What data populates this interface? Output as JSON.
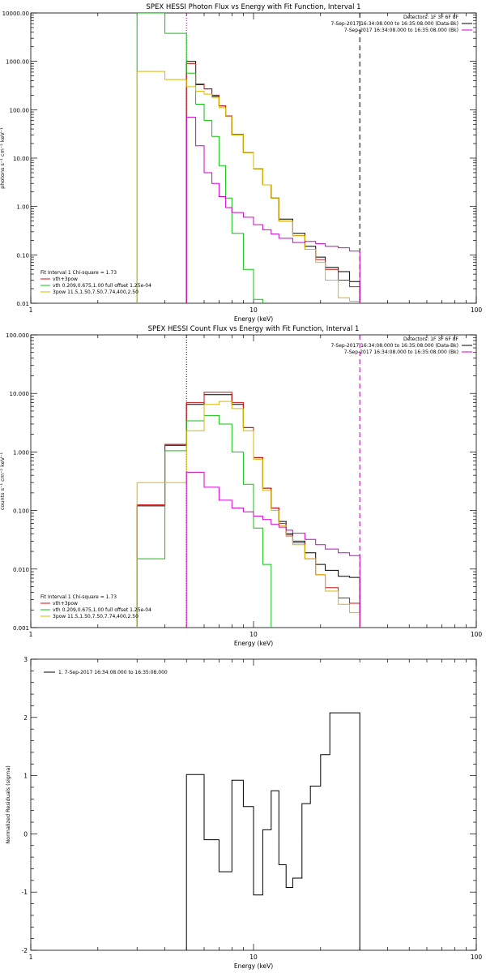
{
  "chart_data": [
    {
      "type": "line",
      "title": "SPEX HESSI Photon Flux vs Energy with Fit Function, Interval 1",
      "xlabel": "Energy (keV)",
      "ylabel": "photons s⁻¹ cm⁻² keV⁻¹",
      "xscale": "log",
      "yscale": "log",
      "xlim": [
        1,
        100
      ],
      "ylim": [
        0.01,
        10000
      ],
      "xticks": [
        "1",
        "10",
        "100"
      ],
      "yticks": [
        "0.01",
        "0.10",
        "1.00",
        "10.00",
        "100.00",
        "1000.00",
        "10000.00"
      ],
      "vlines": [
        {
          "x": 5.0,
          "style": "dotted",
          "color": "#b000b0"
        },
        {
          "x": 30.0,
          "style": "dashed",
          "color": "#000000"
        }
      ],
      "legend_right": [
        {
          "text": "Detectors: 1F 3F 6F 8F",
          "color": ""
        },
        {
          "text": "7-Sep-2017 16:34:08.000 to 16:35:08.000 (Data-Bk)",
          "color": "#000000"
        },
        {
          "text": "7-Sep-2017 16:34:08.000 to 16:35:08.000 (Bk)",
          "color": "#d000d0"
        }
      ],
      "legend_left": [
        {
          "text": "Fit Interval 1   Chi-square = 1.73",
          "color": ""
        },
        {
          "text": "vth+3pow",
          "color": "#d01010"
        },
        {
          "text": "vth 0.209,0.675,1.00  full offset 1.25e-04",
          "color": "#10c010"
        },
        {
          "text": "3pow 11.5,1.50,7.50,7.74,400,2.50",
          "color": "#d8b800"
        }
      ],
      "edges": [
        3.0,
        4.0,
        5.0,
        5.5,
        6.0,
        6.5,
        7.0,
        7.5,
        8.0,
        9.0,
        10.0,
        11.0,
        12.0,
        13.0,
        15.0,
        17.0,
        19.0,
        21.0,
        24.0,
        27.0,
        30.0
      ],
      "series": [
        {
          "name": "",
          "color": "#000000",
          "values": [
            null,
            null,
            1000,
            330,
            270,
            190,
            120,
            74,
            30,
            13,
            6,
            2.8,
            1.5,
            0.55,
            0.28,
            0.15,
            0.09,
            0.055,
            0.045,
            0.028
          ]
        },
        {
          "name": "vth+3pow",
          "color": "#d01010",
          "values": [
            null,
            null,
            900,
            340,
            270,
            200,
            120,
            74,
            31,
            13,
            6,
            2.8,
            1.5,
            0.5,
            0.25,
            0.13,
            0.08,
            0.05,
            0.03,
            0.022
          ]
        },
        {
          "name": "vth",
          "color": "#10c010",
          "values": [
            10000,
            3800,
            570,
            130,
            60,
            28,
            7,
            1.5,
            0.28,
            0.05,
            0.012,
            null,
            null,
            null,
            null,
            null,
            null,
            null,
            null,
            null
          ]
        },
        {
          "name": "3pow",
          "color": "#d8b800",
          "values": [
            620,
            420,
            300,
            240,
            210,
            180,
            110,
            72,
            30,
            13,
            6,
            2.8,
            1.5,
            0.5,
            0.25,
            0.13,
            0.07,
            0.03,
            0.013,
            0.011
          ]
        },
        {
          "name": "",
          "color": "#d000d0",
          "values": [
            null,
            null,
            70,
            18,
            5,
            3,
            1.6,
            0.95,
            0.75,
            0.6,
            0.42,
            0.33,
            0.27,
            0.22,
            0.18,
            0.19,
            0.17,
            0.15,
            0.14,
            0.12
          ]
        }
      ]
    },
    {
      "type": "line",
      "title": "SPEX HESSI Count Flux vs Energy with Fit Function, Interval 1",
      "xlabel": "Energy (keV)",
      "ylabel": "counts s⁻¹ cm⁻² keV⁻¹",
      "xscale": "log",
      "yscale": "log",
      "xlim": [
        1,
        100
      ],
      "ylim": [
        0.001,
        100
      ],
      "xticks": [
        "1",
        "10",
        "100"
      ],
      "yticks": [
        "0.001",
        "0.010",
        "0.100",
        "1.000",
        "10.000",
        "100.000"
      ],
      "vlines": [
        {
          "x": 5.0,
          "style": "dotted",
          "color": "#000000"
        },
        {
          "x": 30.0,
          "style": "dashed",
          "color": "#b000b0"
        }
      ],
      "legend_right": [
        {
          "text": "Detectors: 1F 3F 6F 8F",
          "color": ""
        },
        {
          "text": "7-Sep-2017 16:34:08.000 to 16:35:08.000 (Data-Bk)",
          "color": "#000000"
        },
        {
          "text": "7-Sep-2017 16:34:08.000 to 16:35:08.000 (Bk)",
          "color": "#d000d0"
        }
      ],
      "legend_left": [
        {
          "text": "Fit Interval 1   Chi-square = 1.73",
          "color": ""
        },
        {
          "text": "vth+3pow",
          "color": "#d01010"
        },
        {
          "text": "vth 0.209,0.675,1.00  full offset 1.25e-04",
          "color": "#10c010"
        },
        {
          "text": "3pow 11.5,1.50,7.50,7.74,400,2.50",
          "color": "#d8b800"
        }
      ],
      "edges": [
        3.0,
        4.0,
        5.0,
        6.0,
        7.0,
        8.0,
        9.0,
        10.0,
        11.0,
        12.0,
        13.0,
        14.0,
        15.0,
        17.0,
        19.0,
        21.0,
        24.0,
        27.0,
        30.0
      ],
      "series": [
        {
          "name": "",
          "color": "#000000",
          "values": [
            0.12,
            1.3,
            6.5,
            9.5,
            9.5,
            6.5,
            2.6,
            0.8,
            0.24,
            0.11,
            0.065,
            0.04,
            0.03,
            0.019,
            0.012,
            0.0095,
            0.0075,
            0.0072
          ]
        },
        {
          "name": "vth+3pow",
          "color": "#d01010",
          "values": [
            0.125,
            1.35,
            7.0,
            10.5,
            10.5,
            7.0,
            2.6,
            0.8,
            0.24,
            0.11,
            0.06,
            0.038,
            0.028,
            0.015,
            0.008,
            0.0048,
            0.0032,
            0.0026
          ]
        },
        {
          "name": "vth",
          "color": "#10c010",
          "values": [
            0.015,
            1.05,
            3.4,
            4.2,
            3.0,
            1.0,
            0.28,
            0.05,
            0.012,
            null,
            null,
            null,
            null,
            null,
            null,
            null,
            null,
            null
          ]
        },
        {
          "name": "3pow",
          "color": "#d8b800",
          "values": [
            0.3,
            0.3,
            2.3,
            6.5,
            7.3,
            5.5,
            2.3,
            0.75,
            0.22,
            0.1,
            0.055,
            0.036,
            0.026,
            0.015,
            0.008,
            0.0042,
            0.0025,
            0.0018
          ]
        },
        {
          "name": "",
          "color": "#d000d0",
          "values": [
            null,
            null,
            0.45,
            0.25,
            0.15,
            0.11,
            0.095,
            0.08,
            0.07,
            0.058,
            0.052,
            0.046,
            0.041,
            0.032,
            0.026,
            0.022,
            0.019,
            0.017
          ]
        }
      ]
    },
    {
      "type": "line",
      "title": "",
      "xlabel": "Energy (keV)",
      "ylabel": "Normalized Residuals (sigma)",
      "xscale": "log",
      "yscale": "linear",
      "xlim": [
        1,
        100
      ],
      "ylim": [
        -2,
        3
      ],
      "xticks": [
        "1",
        "10",
        "100"
      ],
      "yticks": [
        "-2",
        "-1",
        "0",
        "1",
        "2",
        "3"
      ],
      "legend": {
        "text": "1.  7-Sep-2017 16:34:08.000 to 16:35:08.000"
      },
      "edges": [
        5.0,
        6.0,
        7.0,
        8.0,
        9.0,
        10.0,
        11.0,
        12.0,
        13.0,
        14.0,
        15.0,
        16.5,
        18.0,
        20.0,
        22.0,
        24.0,
        27.0,
        30.0
      ],
      "series": [
        {
          "name": "",
          "color": "#000000",
          "values": [
            1.02,
            -0.1,
            -0.65,
            0.92,
            0.47,
            -1.05,
            0.07,
            0.74,
            -0.53,
            -0.92,
            -0.76,
            0.52,
            0.82,
            1.36,
            2.08,
            2.08,
            2.08
          ]
        }
      ]
    }
  ]
}
